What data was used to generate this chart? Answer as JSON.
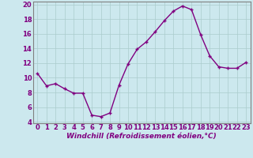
{
  "x": [
    0,
    1,
    2,
    3,
    4,
    5,
    6,
    7,
    8,
    9,
    10,
    11,
    12,
    13,
    14,
    15,
    16,
    17,
    18,
    19,
    20,
    21,
    22,
    23
  ],
  "y": [
    10.6,
    8.9,
    9.2,
    8.5,
    7.9,
    7.9,
    4.9,
    4.7,
    5.2,
    9.0,
    11.9,
    13.9,
    14.9,
    16.3,
    17.8,
    19.1,
    19.8,
    19.3,
    15.9,
    13.0,
    11.5,
    11.3,
    11.3,
    12.1
  ],
  "line_color": "#800080",
  "marker": "+",
  "marker_color": "#800080",
  "bg_color": "#cce8ee",
  "grid_color": "#aacccc",
  "xlabel": "Windchill (Refroidissement éolien,°C)",
  "xlim": [
    -0.5,
    23.5
  ],
  "ylim": [
    3.8,
    20.4
  ],
  "yticks": [
    4,
    6,
    8,
    10,
    12,
    14,
    16,
    18,
    20
  ],
  "xticks": [
    0,
    1,
    2,
    3,
    4,
    5,
    6,
    7,
    8,
    9,
    10,
    11,
    12,
    13,
    14,
    15,
    16,
    17,
    18,
    19,
    20,
    21,
    22,
    23
  ],
  "xlabel_fontsize": 6.5,
  "tick_fontsize": 6,
  "linewidth": 1.0,
  "markersize": 3.5
}
